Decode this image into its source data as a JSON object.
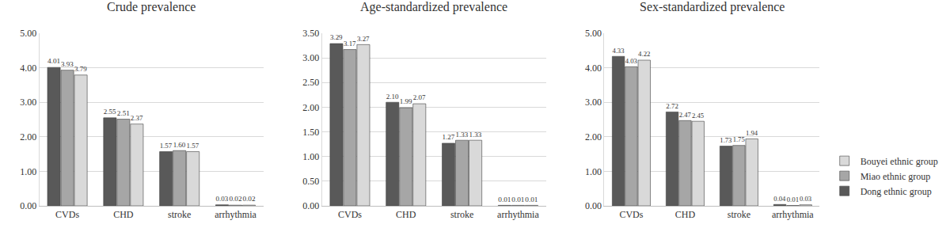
{
  "chart_data": [
    {
      "type": "bar",
      "title": "Crude prevalence",
      "categories": [
        "CVDs",
        "CHD",
        "stroke",
        "arrhythmia"
      ],
      "series": [
        {
          "name": "Dong ethnic group",
          "color": "#595959",
          "values": [
            4.01,
            2.55,
            1.57,
            0.03
          ],
          "value_labels": [
            "4.01",
            "2.55",
            "1.57",
            "0.03"
          ]
        },
        {
          "name": "Miao ethnic group",
          "color": "#a6a6a6",
          "values": [
            3.93,
            2.51,
            1.6,
            0.02
          ],
          "value_labels": [
            "3.93",
            "2.51",
            "1.60",
            "0.02"
          ]
        },
        {
          "name": "Bouyei ethnic group",
          "color": "#d9d9d9",
          "values": [
            3.79,
            2.37,
            1.57,
            0.02
          ],
          "value_labels": [
            "3.79",
            "2.37",
            "1.57",
            "0.02"
          ]
        }
      ],
      "ylim": [
        0,
        5
      ],
      "yticks": [
        {
          "value": 0,
          "label": "0.00"
        },
        {
          "value": 1,
          "label": "1.00"
        },
        {
          "value": 2,
          "label": "2.00"
        },
        {
          "value": 3,
          "label": "3.00"
        },
        {
          "value": 4,
          "label": "4.00"
        },
        {
          "value": 5,
          "label": "5.00"
        }
      ],
      "grid": true,
      "data_labels": true
    },
    {
      "type": "bar",
      "title": "Age-standardized prevalence",
      "categories": [
        "CVDs",
        "CHD",
        "stroke",
        "arrhythmia"
      ],
      "series": [
        {
          "name": "Dong ethnic group",
          "color": "#595959",
          "values": [
            3.29,
            2.1,
            1.27,
            0.01
          ],
          "value_labels": [
            "3.29",
            "2.10",
            "1.27",
            "0.01"
          ]
        },
        {
          "name": "Miao ethnic group",
          "color": "#a6a6a6",
          "values": [
            3.17,
            1.99,
            1.33,
            0.01
          ],
          "value_labels": [
            "3.17",
            "1.99",
            "1.33",
            "0.01"
          ]
        },
        {
          "name": "Bouyei ethnic group",
          "color": "#d9d9d9",
          "values": [
            3.27,
            2.07,
            1.33,
            0.01
          ],
          "value_labels": [
            "3.27",
            "2.07",
            "1.33",
            "0.01"
          ]
        }
      ],
      "ylim": [
        0,
        3.5
      ],
      "yticks": [
        {
          "value": 0,
          "label": "0.00"
        },
        {
          "value": 0.5,
          "label": "0.50"
        },
        {
          "value": 1,
          "label": "1.00"
        },
        {
          "value": 1.5,
          "label": "1.50"
        },
        {
          "value": 2,
          "label": "2.00"
        },
        {
          "value": 2.5,
          "label": "2.50"
        },
        {
          "value": 3,
          "label": "3.00"
        },
        {
          "value": 3.5,
          "label": "3.50"
        }
      ],
      "grid": true,
      "data_labels": true
    },
    {
      "type": "bar",
      "title": "Sex-standardized prevalence",
      "categories": [
        "CVDs",
        "CHD",
        "stroke",
        "arrhythmia"
      ],
      "series": [
        {
          "name": "Dong ethnic group",
          "color": "#595959",
          "values": [
            4.33,
            2.72,
            1.73,
            0.04
          ],
          "value_labels": [
            "4.33",
            "2.72",
            "1.73",
            "0.04"
          ]
        },
        {
          "name": "Miao ethnic group",
          "color": "#a6a6a6",
          "values": [
            4.03,
            2.47,
            1.75,
            0.01
          ],
          "value_labels": [
            "4.03",
            "2.47",
            "1.75",
            "0.01"
          ]
        },
        {
          "name": "Bouyei ethnic group",
          "color": "#d9d9d9",
          "values": [
            4.22,
            2.45,
            1.94,
            0.03
          ],
          "value_labels": [
            "4.22",
            "2.45",
            "1.94",
            "0.03"
          ]
        }
      ],
      "ylim": [
        0,
        5
      ],
      "yticks": [
        {
          "value": 0,
          "label": "0.00"
        },
        {
          "value": 1,
          "label": "1.00"
        },
        {
          "value": 2,
          "label": "2.00"
        },
        {
          "value": 3,
          "label": "3.00"
        },
        {
          "value": 4,
          "label": "4.00"
        },
        {
          "value": 5,
          "label": "5.00"
        }
      ],
      "grid": true,
      "data_labels": true,
      "legend": "right"
    }
  ]
}
